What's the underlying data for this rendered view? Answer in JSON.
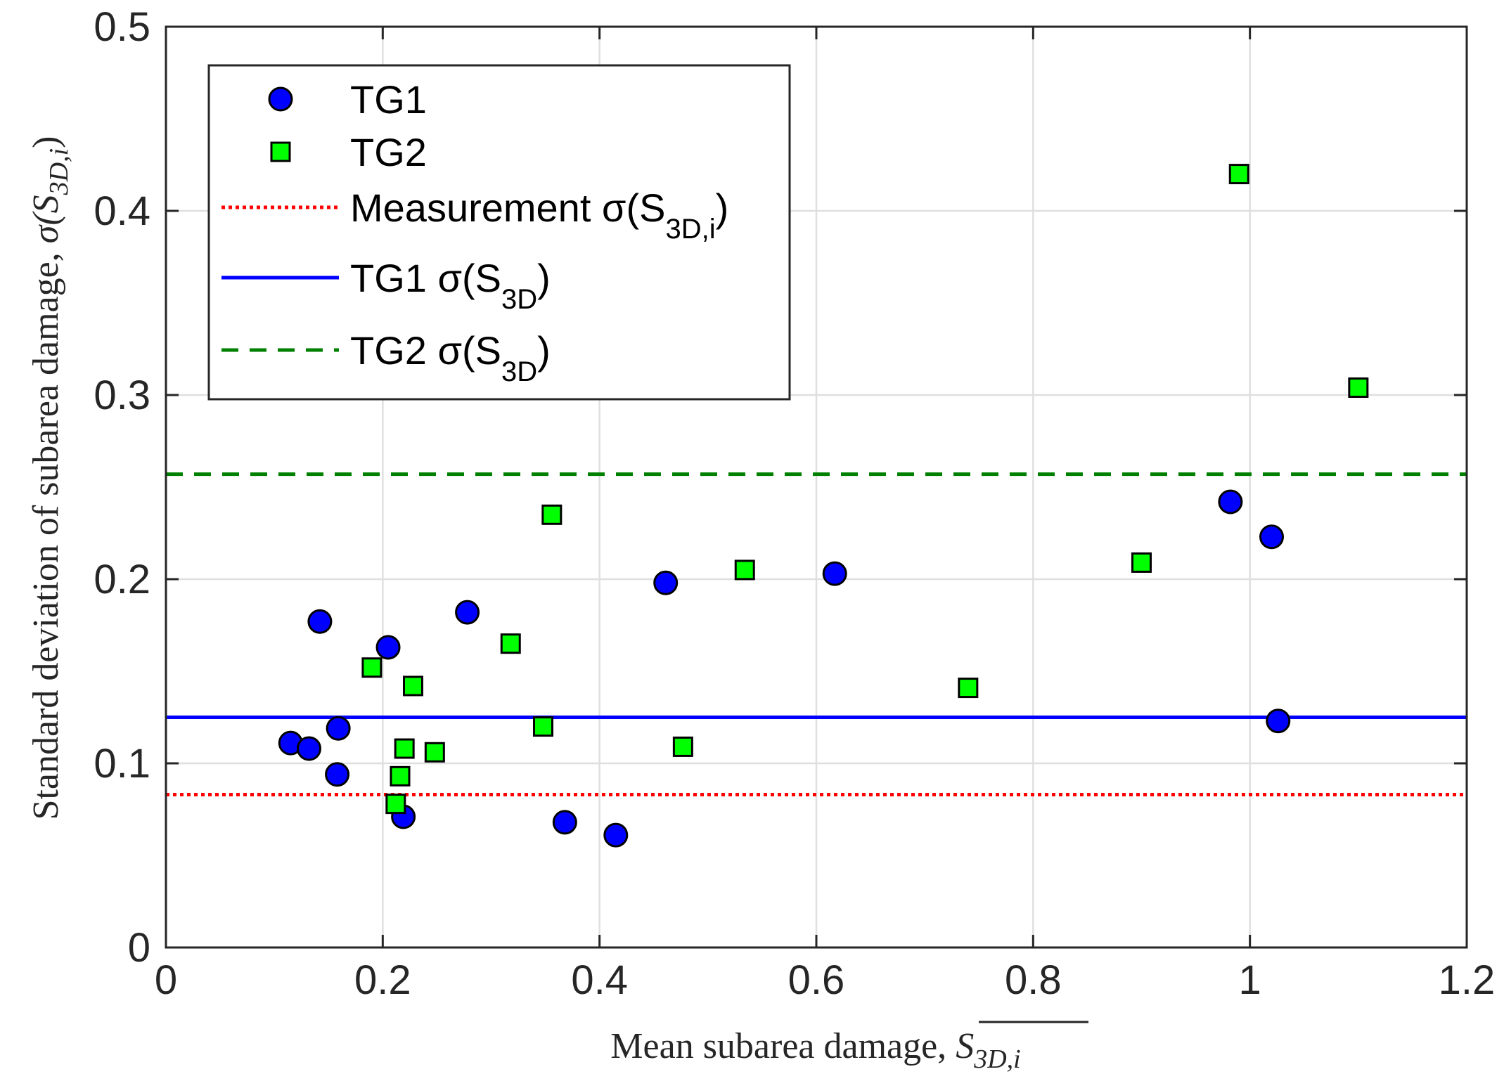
{
  "chart_data": {
    "type": "scatter",
    "title": "",
    "xlabel_main": "Mean subarea damage, ",
    "xlabel_symbol": "S",
    "xlabel_symbol_sub": "3D,i",
    "ylabel_main": "Standard deviation of subarea damage, ",
    "ylabel_symbol": "σ(S",
    "ylabel_symbol_sub": "3D,i",
    "ylabel_symbol_close": ")",
    "xlim": [
      0,
      1.2
    ],
    "ylim": [
      0,
      0.5
    ],
    "grid": true,
    "x_ticks": [
      0,
      0.2,
      0.4,
      0.6,
      0.8,
      1,
      1.2
    ],
    "x_tick_labels": [
      "0",
      "0.2",
      "0.4",
      "0.6",
      "0.8",
      "1",
      "1.2"
    ],
    "y_ticks": [
      0,
      0.1,
      0.2,
      0.3,
      0.4,
      0.5
    ],
    "y_tick_labels": [
      "0",
      "0.1",
      "0.2",
      "0.3",
      "0.4",
      "0.5"
    ],
    "legend_position": "top-left",
    "series": [
      {
        "name": "TG1",
        "kind": "markers",
        "marker": "circle",
        "color": "#0000ff",
        "points": [
          [
            0.115,
            0.111
          ],
          [
            0.132,
            0.108
          ],
          [
            0.142,
            0.177
          ],
          [
            0.158,
            0.094
          ],
          [
            0.159,
            0.119
          ],
          [
            0.205,
            0.163
          ],
          [
            0.219,
            0.071
          ],
          [
            0.278,
            0.182
          ],
          [
            0.368,
            0.068
          ],
          [
            0.415,
            0.061
          ],
          [
            0.461,
            0.198
          ],
          [
            0.617,
            0.203
          ],
          [
            0.982,
            0.242
          ],
          [
            1.02,
            0.223
          ],
          [
            1.026,
            0.123
          ]
        ]
      },
      {
        "name": "TG2",
        "kind": "markers",
        "marker": "square",
        "color": "#00ff00",
        "points": [
          [
            0.19,
            0.152
          ],
          [
            0.212,
            0.078
          ],
          [
            0.216,
            0.093
          ],
          [
            0.22,
            0.108
          ],
          [
            0.228,
            0.142
          ],
          [
            0.248,
            0.106
          ],
          [
            0.318,
            0.165
          ],
          [
            0.348,
            0.12
          ],
          [
            0.356,
            0.235
          ],
          [
            0.477,
            0.109
          ],
          [
            0.534,
            0.205
          ],
          [
            0.74,
            0.141
          ],
          [
            0.9,
            0.209
          ],
          [
            0.99,
            0.42
          ],
          [
            1.1,
            0.304
          ]
        ]
      },
      {
        "name": "Measurement σ(S",
        "name_sub": "3D,i",
        "name_close": ")",
        "kind": "hline",
        "style": "dotted",
        "color": "#ff0000",
        "y": 0.083
      },
      {
        "name": "TG1 σ(S",
        "name_sub": "3D",
        "name_close": ")",
        "kind": "hline",
        "style": "solid",
        "color": "#0000ff",
        "y": 0.125
      },
      {
        "name": "TG2 σ(S",
        "name_sub": "3D",
        "name_close": ")",
        "kind": "hline",
        "style": "dashed",
        "color": "#008000",
        "y": 0.257
      }
    ]
  }
}
